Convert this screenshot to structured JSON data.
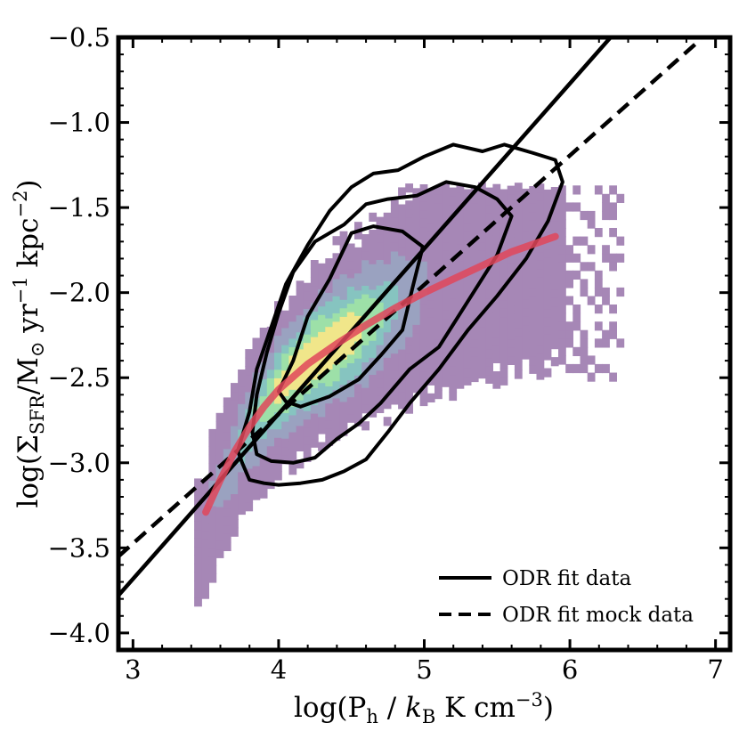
{
  "chart_data": {
    "type": "scatter",
    "xlabel": "log(P_h / k_B K cm^-3)",
    "ylabel": "log(Σ_SFR/M_⊙ yr^-1 kpc^-2)",
    "xlim": [
      2.9,
      7.1
    ],
    "ylim": [
      -4.1,
      -0.5
    ],
    "x_ticks": [
      3,
      4,
      5,
      6,
      7
    ],
    "x_tick_labels": [
      "3",
      "4",
      "5",
      "6",
      "7"
    ],
    "y_ticks": [
      -0.5,
      -1.0,
      -1.5,
      -2.0,
      -2.5,
      -3.0,
      -3.5,
      -4.0
    ],
    "y_tick_labels": [
      "−0.5",
      "−1.0",
      "−1.5",
      "−2.0",
      "−2.5",
      "−3.0",
      "−3.5",
      "−4.0"
    ],
    "grid": false,
    "legend_position": "bottom-right",
    "legend": [
      {
        "label": "ODR fit data",
        "style": "solid"
      },
      {
        "label": "ODR fit mock data",
        "style": "dashed"
      }
    ],
    "series": [
      {
        "name": "ODR fit data",
        "kind": "line",
        "style": "solid",
        "color": "#000000",
        "x": [
          2.9,
          6.3
        ],
        "y": [
          -3.78,
          -0.48
        ]
      },
      {
        "name": "ODR fit mock data",
        "kind": "line",
        "style": "dashed",
        "color": "#000000",
        "x": [
          2.9,
          6.9
        ],
        "y": [
          -3.55,
          -0.51
        ]
      },
      {
        "kind": "line",
        "style": "curve",
        "color": "#e0475a",
        "x": [
          3.5,
          3.6,
          3.7,
          3.8,
          3.9,
          4.0,
          4.2,
          4.4,
          4.6,
          4.8,
          5.0,
          5.2,
          5.4,
          5.6,
          5.8,
          5.9
        ],
        "y": [
          -3.29,
          -3.1,
          -2.93,
          -2.79,
          -2.67,
          -2.57,
          -2.42,
          -2.3,
          -2.19,
          -2.09,
          -2.0,
          -1.92,
          -1.84,
          -1.76,
          -1.7,
          -1.67
        ]
      },
      {
        "kind": "contour",
        "color": "#000000",
        "level": "outer",
        "x": [
          3.72,
          3.8,
          3.85,
          3.95,
          4.05,
          4.2,
          4.35,
          4.5,
          4.65,
          4.82,
          5.0,
          5.2,
          5.4,
          5.55,
          5.75,
          5.9,
          5.95,
          5.85,
          5.7,
          5.5,
          5.3,
          5.1,
          4.9,
          4.75,
          4.6,
          4.45,
          4.3,
          4.15,
          4.0,
          3.9,
          3.8,
          3.75,
          3.72
        ],
        "y": [
          -2.93,
          -2.7,
          -2.45,
          -2.2,
          -1.95,
          -1.72,
          -1.52,
          -1.38,
          -1.3,
          -1.28,
          -1.2,
          -1.13,
          -1.17,
          -1.13,
          -1.18,
          -1.22,
          -1.35,
          -1.58,
          -1.8,
          -2.02,
          -2.22,
          -2.45,
          -2.65,
          -2.82,
          -2.98,
          -3.05,
          -3.1,
          -3.12,
          -3.13,
          -3.12,
          -3.1,
          -3.0,
          -2.93
        ]
      },
      {
        "kind": "contour",
        "color": "#000000",
        "level": "middle",
        "x": [
          3.82,
          3.85,
          3.92,
          4.0,
          4.1,
          4.25,
          4.45,
          4.6,
          4.75,
          4.95,
          5.15,
          5.35,
          5.5,
          5.6,
          5.5,
          5.3,
          5.1,
          4.9,
          4.7,
          4.55,
          4.4,
          4.25,
          4.1,
          3.95,
          3.85,
          3.82
        ],
        "y": [
          -2.82,
          -2.6,
          -2.35,
          -2.12,
          -1.88,
          -1.7,
          -1.6,
          -1.48,
          -1.45,
          -1.43,
          -1.35,
          -1.38,
          -1.45,
          -1.55,
          -1.78,
          -2.05,
          -2.32,
          -2.45,
          -2.65,
          -2.77,
          -2.86,
          -2.97,
          -3.0,
          -2.99,
          -2.95,
          -2.82
        ]
      },
      {
        "kind": "contour",
        "color": "#000000",
        "level": "inner",
        "x": [
          4.0,
          4.1,
          4.2,
          4.35,
          4.5,
          4.65,
          4.85,
          4.99,
          4.92,
          4.85,
          4.7,
          4.55,
          4.35,
          4.15,
          4.05,
          4.0
        ],
        "y": [
          -2.58,
          -2.4,
          -2.14,
          -1.92,
          -1.65,
          -1.61,
          -1.64,
          -1.73,
          -1.97,
          -2.22,
          -2.37,
          -2.51,
          -2.61,
          -2.67,
          -2.64,
          -2.58
        ]
      },
      {
        "kind": "density",
        "colormap": [
          "#a687b6",
          "#9aa2c0",
          "#86c4c0",
          "#9de0a8",
          "#f0e68a"
        ],
        "bins": [
          3.5,
          4.5,
          5.5,
          6.0
        ]
      }
    ]
  },
  "legend_labels": {
    "solid": "ODR fit data",
    "dashed": "ODR fit mock data"
  }
}
